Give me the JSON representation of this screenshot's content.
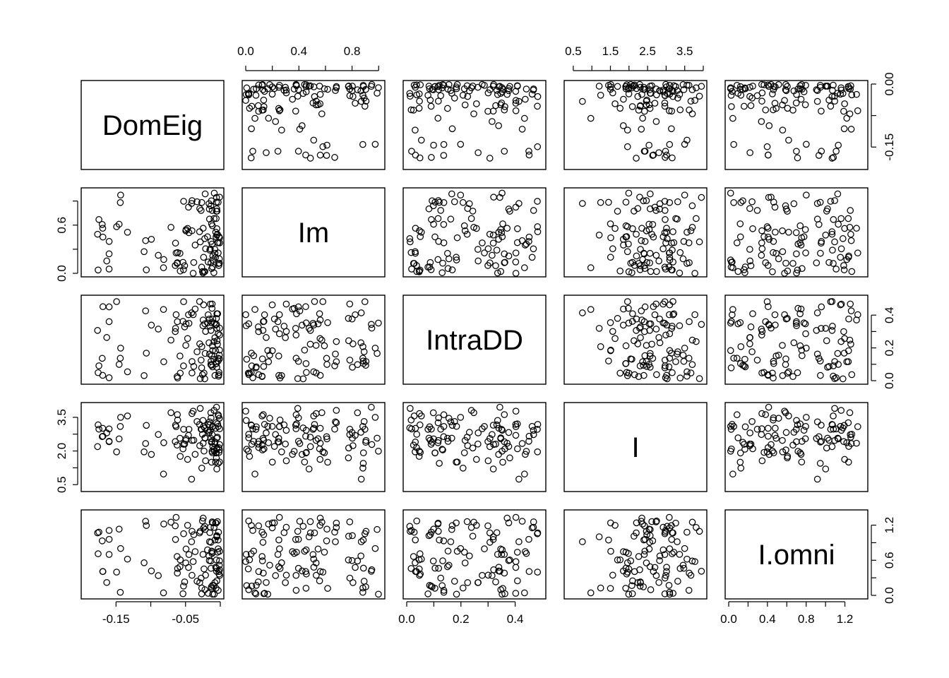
{
  "chart_data": {
    "type": "scatter",
    "layout": "scatterplot-matrix",
    "variables": [
      {
        "name": "DomEig",
        "range": [
          -0.195,
          0.0
        ],
        "ticks": [
          -0.15,
          -0.1,
          -0.05,
          0.0
        ],
        "tick_labels": [
          "-0.15",
          "",
          "-0.05",
          ""
        ],
        "right_tick_labels": [
          "-0.15",
          "",
          "0.00"
        ],
        "right_ticks": [
          -0.15,
          -0.075,
          0.0
        ]
      },
      {
        "name": "Im",
        "range": [
          0.0,
          1.02
        ],
        "ticks": [
          0.0,
          0.2,
          0.4,
          0.6,
          0.8,
          1.0
        ],
        "tick_labels": [
          "0.0",
          "",
          "0.4",
          "",
          "0.8",
          ""
        ],
        "left_ticks": [
          0.0,
          0.3,
          0.6,
          0.9
        ],
        "left_tick_labels": [
          "0.0",
          "",
          "0.6",
          ""
        ]
      },
      {
        "name": "IntraDD",
        "range": [
          0.0,
          0.5
        ],
        "ticks": [
          0.0,
          0.1,
          0.2,
          0.3,
          0.4
        ],
        "tick_labels": [
          "0.0",
          "",
          "0.2",
          "",
          "0.4"
        ],
        "right_tick_labels": [
          "0.0",
          "0.2",
          "0.4"
        ],
        "right_ticks": [
          0.0,
          0.1,
          0.2,
          0.3,
          0.4
        ]
      },
      {
        "name": "I",
        "range": [
          0.35,
          4.0
        ],
        "ticks": [
          0.5,
          1.0,
          1.5,
          2.0,
          2.5,
          3.0,
          3.5,
          4.0
        ],
        "tick_labels": [
          "0.5",
          "",
          "1.5",
          "",
          "2.5",
          "",
          "3.5",
          ""
        ],
        "left_ticks": [
          0.5,
          1.25,
          2.0,
          2.75,
          3.5
        ],
        "left_tick_labels": [
          "0.5",
          "",
          "2.0",
          "",
          "3.5"
        ]
      },
      {
        "name": "I.omni",
        "range": [
          0.0,
          1.4
        ],
        "ticks": [
          0.0,
          0.2,
          0.4,
          0.6,
          0.8,
          1.0,
          1.2
        ],
        "tick_labels": [
          "0.0",
          "0.4",
          "0.8",
          "1.2"
        ],
        "tick_label_values": [
          0.0,
          0.4,
          0.8,
          1.2
        ],
        "right_ticks": [
          0.0,
          0.3,
          0.6,
          0.9,
          1.2
        ],
        "right_tick_labels": [
          "0.0",
          "",
          "0.6",
          "",
          "1.2"
        ]
      }
    ],
    "n_points": 110,
    "seed": 9132,
    "grid": false,
    "legend": "none"
  }
}
